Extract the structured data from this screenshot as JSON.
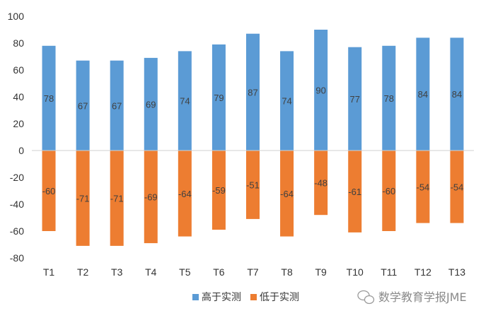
{
  "chart_data": {
    "type": "bar",
    "stacked": true,
    "categories": [
      "T1",
      "T2",
      "T3",
      "T4",
      "T5",
      "T6",
      "T7",
      "T8",
      "T9",
      "T10",
      "T11",
      "T12",
      "T13"
    ],
    "series": [
      {
        "name": "高于实测",
        "color": "#5b9bd5",
        "values": [
          78,
          67,
          67,
          69,
          74,
          79,
          87,
          74,
          90,
          77,
          78,
          84,
          84
        ]
      },
      {
        "name": "低于实测",
        "color": "#ed7d31",
        "values": [
          -60,
          -71,
          -71,
          -69,
          -64,
          -59,
          -51,
          -64,
          -48,
          -61,
          -60,
          -54,
          -54
        ]
      }
    ],
    "ylim": [
      -80,
      100
    ],
    "yticks": [
      100,
      80,
      60,
      40,
      20,
      0,
      -20,
      -40,
      -60,
      -80
    ],
    "grid": false,
    "legend_position": "bottom"
  },
  "watermark": {
    "text": "数学教育学报JME",
    "icon": "wechat-icon"
  }
}
